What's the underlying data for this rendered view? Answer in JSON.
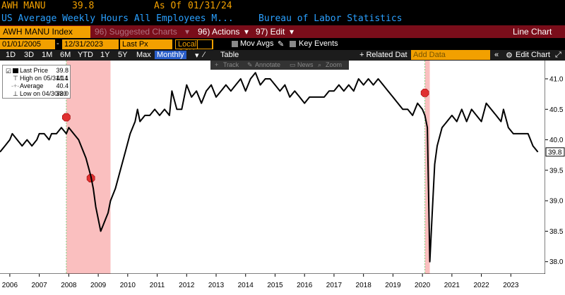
{
  "header": {
    "ticker": "AWH MANU",
    "last_value": "39.8",
    "as_of_label": "As Of",
    "as_of_date": "01/31/24",
    "description": "US Average Weekly Hours All Employees M...",
    "source": "Bureau of Labor Statistics"
  },
  "menu_bar": {
    "security": "AWH MANU Index",
    "suggested_charts": "96) Suggested Charts",
    "actions": "96) Actions",
    "edit": "97) Edit",
    "chart_type": "Line Chart"
  },
  "filters": {
    "start_date": "01/01/2005",
    "end_date": "12/31/2023",
    "field": "Last Px",
    "currency": "Local CCY",
    "mov_avgs": "Mov Avgs",
    "key_events": "Key Events"
  },
  "range_bar": {
    "ranges": [
      "1D",
      "3D",
      "1M",
      "6M",
      "YTD",
      "1Y",
      "5Y",
      "Max"
    ],
    "frequency": "Monthly",
    "table": "Table",
    "related_data": "+ Related Dat",
    "add_data_placeholder": "Add Data",
    "edit_chart": "Edit Chart"
  },
  "chart_toolbar": {
    "track": "Track",
    "annotate": "Annotate",
    "news": "News",
    "zoom": "Zoom"
  },
  "legend": {
    "last_price_label": "Last Price",
    "last_price_value": "39.8",
    "high_label": "High on 05/31/14",
    "high_value": "41.1",
    "average_label": "Average",
    "average_value": "40.4",
    "low_label": "Low on 04/30/20",
    "low_value": "38.0"
  },
  "colors": {
    "header_text": "#f2a000",
    "menu_bar": "#7a0d1a",
    "line": "#000000",
    "recession_shade": "#f58a8a",
    "last_price_tag": "#ffffff"
  },
  "chart_data": {
    "type": "line",
    "title": "",
    "xlabel": "",
    "ylabel": "",
    "x_ticks": [
      "2006",
      "2007",
      "2008",
      "2009",
      "2010",
      "2011",
      "2012",
      "2013",
      "2014",
      "2015",
      "2016",
      "2017",
      "2018",
      "2019",
      "2020",
      "2021",
      "2022",
      "2023"
    ],
    "y_ticks": [
      38.0,
      38.5,
      39.0,
      39.5,
      40.0,
      40.5,
      41.0
    ],
    "ylim": [
      37.8,
      41.3
    ],
    "xlim": [
      "2005-09",
      "2024-03"
    ],
    "grid": false,
    "last_tag": "39.8",
    "recessions": [
      {
        "start": "2007-12",
        "end": "2009-06"
      },
      {
        "start": "2020-02",
        "end": "2020-04"
      }
    ],
    "event_markers": [
      {
        "date": "2007-12",
        "value": 40.3
      },
      {
        "date": "2008-10",
        "value": 39.3
      },
      {
        "date": "2020-02",
        "value": 40.7
      }
    ],
    "series": [
      {
        "values": [
          [
            "2005-09",
            39.8
          ],
          [
            "2005-11",
            39.9
          ],
          [
            "2006-01",
            40.0
          ],
          [
            "2006-02",
            40.1
          ],
          [
            "2006-04",
            40.0
          ],
          [
            "2006-06",
            39.9
          ],
          [
            "2006-08",
            40.0
          ],
          [
            "2006-10",
            39.9
          ],
          [
            "2006-12",
            40.0
          ],
          [
            "2007-01",
            40.1
          ],
          [
            "2007-03",
            40.1
          ],
          [
            "2007-05",
            40.0
          ],
          [
            "2007-06",
            40.1
          ],
          [
            "2007-08",
            40.1
          ],
          [
            "2007-10",
            40.2
          ],
          [
            "2007-12",
            40.1
          ],
          [
            "2008-01",
            40.2
          ],
          [
            "2008-03",
            40.1
          ],
          [
            "2008-05",
            40.0
          ],
          [
            "2008-06",
            39.9
          ],
          [
            "2008-08",
            39.7
          ],
          [
            "2008-10",
            39.4
          ],
          [
            "2008-11",
            39.2
          ],
          [
            "2008-12",
            38.9
          ],
          [
            "2009-01",
            38.7
          ],
          [
            "2009-02",
            38.5
          ],
          [
            "2009-03",
            38.6
          ],
          [
            "2009-04",
            38.7
          ],
          [
            "2009-05",
            38.8
          ],
          [
            "2009-06",
            39.0
          ],
          [
            "2009-08",
            39.2
          ],
          [
            "2009-10",
            39.5
          ],
          [
            "2009-12",
            39.8
          ],
          [
            "2010-02",
            40.1
          ],
          [
            "2010-04",
            40.3
          ],
          [
            "2010-05",
            40.5
          ],
          [
            "2010-06",
            40.3
          ],
          [
            "2010-08",
            40.4
          ],
          [
            "2010-10",
            40.4
          ],
          [
            "2010-12",
            40.5
          ],
          [
            "2011-02",
            40.4
          ],
          [
            "2011-04",
            40.5
          ],
          [
            "2011-06",
            40.4
          ],
          [
            "2011-07",
            40.8
          ],
          [
            "2011-09",
            40.5
          ],
          [
            "2011-11",
            40.5
          ],
          [
            "2012-01",
            40.9
          ],
          [
            "2012-03",
            40.7
          ],
          [
            "2012-05",
            40.8
          ],
          [
            "2012-07",
            40.6
          ],
          [
            "2012-09",
            40.8
          ],
          [
            "2012-11",
            40.9
          ],
          [
            "2013-01",
            40.7
          ],
          [
            "2013-03",
            40.8
          ],
          [
            "2013-05",
            40.9
          ],
          [
            "2013-07",
            40.8
          ],
          [
            "2013-09",
            40.9
          ],
          [
            "2013-11",
            41.0
          ],
          [
            "2014-01",
            40.8
          ],
          [
            "2014-03",
            41.0
          ],
          [
            "2014-05",
            41.1
          ],
          [
            "2014-07",
            40.9
          ],
          [
            "2014-09",
            41.0
          ],
          [
            "2014-11",
            41.0
          ],
          [
            "2015-01",
            40.9
          ],
          [
            "2015-03",
            40.8
          ],
          [
            "2015-05",
            40.9
          ],
          [
            "2015-07",
            40.7
          ],
          [
            "2015-09",
            40.8
          ],
          [
            "2015-11",
            40.7
          ],
          [
            "2016-01",
            40.6
          ],
          [
            "2016-03",
            40.7
          ],
          [
            "2016-05",
            40.7
          ],
          [
            "2016-07",
            40.7
          ],
          [
            "2016-09",
            40.7
          ],
          [
            "2016-11",
            40.8
          ],
          [
            "2017-01",
            40.8
          ],
          [
            "2017-03",
            40.9
          ],
          [
            "2017-05",
            40.8
          ],
          [
            "2017-07",
            40.9
          ],
          [
            "2017-09",
            40.8
          ],
          [
            "2017-11",
            41.0
          ],
          [
            "2018-01",
            40.9
          ],
          [
            "2018-03",
            41.0
          ],
          [
            "2018-05",
            40.9
          ],
          [
            "2018-07",
            41.0
          ],
          [
            "2018-09",
            40.9
          ],
          [
            "2018-11",
            40.8
          ],
          [
            "2019-01",
            40.7
          ],
          [
            "2019-03",
            40.6
          ],
          [
            "2019-05",
            40.5
          ],
          [
            "2019-07",
            40.5
          ],
          [
            "2019-09",
            40.4
          ],
          [
            "2019-11",
            40.6
          ],
          [
            "2020-01",
            40.5
          ],
          [
            "2020-02",
            40.4
          ],
          [
            "2020-03",
            40.2
          ],
          [
            "2020-04",
            38.0
          ],
          [
            "2020-05",
            38.8
          ],
          [
            "2020-06",
            39.6
          ],
          [
            "2020-07",
            39.9
          ],
          [
            "2020-09",
            40.2
          ],
          [
            "2020-11",
            40.3
          ],
          [
            "2021-01",
            40.4
          ],
          [
            "2021-03",
            40.3
          ],
          [
            "2021-05",
            40.5
          ],
          [
            "2021-07",
            40.3
          ],
          [
            "2021-09",
            40.5
          ],
          [
            "2021-11",
            40.4
          ],
          [
            "2022-01",
            40.3
          ],
          [
            "2022-03",
            40.6
          ],
          [
            "2022-05",
            40.5
          ],
          [
            "2022-07",
            40.4
          ],
          [
            "2022-09",
            40.3
          ],
          [
            "2022-10",
            40.5
          ],
          [
            "2022-12",
            40.2
          ],
          [
            "2023-02",
            40.1
          ],
          [
            "2023-04",
            40.1
          ],
          [
            "2023-06",
            40.1
          ],
          [
            "2023-08",
            40.1
          ],
          [
            "2023-10",
            39.9
          ],
          [
            "2023-12",
            39.8
          ]
        ]
      }
    ]
  }
}
